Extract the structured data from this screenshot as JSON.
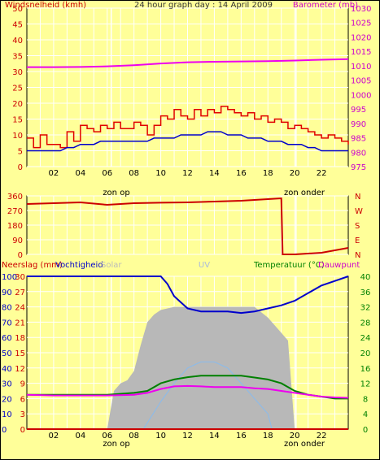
{
  "title": "24 hour graph day : 14 April 2009",
  "top_panel": {
    "left_label": "Windsnelheid (kmh)",
    "right_label": "Barometer (mb)",
    "left_ticks": [
      "50",
      "45",
      "40",
      "35",
      "30",
      "25",
      "20",
      "15",
      "10",
      "5",
      "0"
    ],
    "right_ticks": [
      "1030",
      "1025",
      "1020",
      "1015",
      "1010",
      "1005",
      "1000",
      "995",
      "990",
      "985",
      "980",
      "975"
    ]
  },
  "wind_panel": {
    "left_ticks": [
      "360",
      "270",
      "180",
      "90",
      "0"
    ],
    "right_ticks": [
      "N",
      "W",
      "S",
      "E",
      "N"
    ]
  },
  "bottom_panel": {
    "left_labels": [
      "Neerslag (mm)",
      "Vochtigheid",
      "Solar",
      "UV",
      "Temperatuur (°C)",
      "Dauwpunt"
    ],
    "rain_ticks": [
      "0",
      "3",
      "6",
      "9",
      "12",
      "15",
      "18",
      "21",
      "24",
      "27",
      "30"
    ],
    "humidity_ticks": [
      "100",
      "90",
      "80",
      "70",
      "60",
      "50",
      "40",
      "30",
      "20",
      "10",
      "0"
    ],
    "temp_ticks": [
      "40",
      "36",
      "32",
      "28",
      "24",
      "20",
      "16",
      "12",
      "8",
      "4",
      "0"
    ]
  },
  "hour_ticks": [
    "02",
    "04",
    "06",
    "08",
    "10",
    "12",
    "14",
    "16",
    "18",
    "20",
    "22",
    ""
  ],
  "sunrise_label": "zon op",
  "sunset_label": "zon onder",
  "colors": {
    "background": "#ffff99",
    "wind_gust": "#e00000",
    "wind_avg": "#0000cc",
    "barometer": "#ee00ee",
    "direction": "#cc0000",
    "humidity": "#0000cc",
    "solar": "#b8b8b8",
    "uv": "#88bbee",
    "temperature": "#008000",
    "dewpoint": "#ee00ee",
    "rain": "#cc0000"
  },
  "chart_data": [
    {
      "type": "line",
      "name": "wind and barometer",
      "x_unit": "hour",
      "xlim": [
        0,
        24
      ],
      "ylim_left": [
        0,
        50
      ],
      "ylim_right": [
        975,
        1030
      ],
      "series": [
        {
          "name": "Windsnelheid gust",
          "axis": "left",
          "x": [
            0,
            0.5,
            1,
            1.5,
            2,
            2.5,
            3,
            3.5,
            4,
            4.5,
            5,
            5.5,
            6,
            6.5,
            7,
            7.5,
            8,
            8.5,
            9,
            9.5,
            10,
            10.5,
            11,
            11.5,
            12,
            12.5,
            13,
            13.5,
            14,
            14.5,
            15,
            15.5,
            16,
            16.5,
            17,
            17.5,
            18,
            18.5,
            19,
            19.5,
            20,
            20.5,
            21,
            21.5,
            22,
            22.5,
            23,
            23.5,
            24
          ],
          "y": [
            9,
            6,
            10,
            7,
            7,
            6,
            11,
            8,
            13,
            12,
            11,
            13,
            12,
            14,
            12,
            12,
            14,
            13,
            10,
            13,
            16,
            15,
            18,
            16,
            15,
            18,
            16,
            18,
            17,
            19,
            18,
            17,
            16,
            17,
            15,
            16,
            14,
            15,
            14,
            12,
            13,
            12,
            11,
            10,
            9,
            10,
            9,
            8,
            7
          ]
        },
        {
          "name": "Windsnelheid gemiddeld",
          "axis": "left",
          "x": [
            0,
            0.5,
            1,
            1.5,
            2,
            2.5,
            3,
            3.5,
            4,
            4.5,
            5,
            5.5,
            6,
            6.5,
            7,
            7.5,
            8,
            8.5,
            9,
            9.5,
            10,
            10.5,
            11,
            11.5,
            12,
            12.5,
            13,
            13.5,
            14,
            14.5,
            15,
            15.5,
            16,
            16.5,
            17,
            17.5,
            18,
            18.5,
            19,
            19.5,
            20,
            20.5,
            21,
            21.5,
            22,
            22.5,
            23,
            23.5,
            24
          ],
          "y": [
            5,
            5,
            5,
            5,
            5,
            5,
            6,
            6,
            7,
            7,
            7,
            8,
            8,
            8,
            8,
            8,
            8,
            8,
            8,
            9,
            9,
            9,
            9,
            10,
            10,
            10,
            10,
            11,
            11,
            11,
            10,
            10,
            10,
            9,
            9,
            9,
            8,
            8,
            8,
            7,
            7,
            7,
            6,
            6,
            5,
            5,
            5,
            5,
            5
          ]
        },
        {
          "name": "Barometer",
          "axis": "right",
          "x": [
            0,
            2,
            4,
            6,
            8,
            10,
            12,
            14,
            16,
            18,
            20,
            22,
            24
          ],
          "y": [
            1009.5,
            1009.5,
            1009.6,
            1009.8,
            1010.2,
            1010.8,
            1011.2,
            1011.4,
            1011.5,
            1011.6,
            1011.8,
            1012.1,
            1012.3
          ]
        }
      ]
    },
    {
      "type": "line",
      "name": "wind direction",
      "x_unit": "hour",
      "xlim": [
        0,
        24
      ],
      "ylim": [
        0,
        360
      ],
      "series": [
        {
          "name": "Windrichting",
          "x": [
            0,
            2,
            4,
            6,
            8,
            10,
            12,
            14,
            16,
            18,
            19,
            19.1,
            20,
            22,
            24
          ],
          "y": [
            310,
            315,
            320,
            305,
            315,
            318,
            320,
            325,
            330,
            340,
            345,
            0,
            0,
            10,
            40
          ]
        }
      ]
    },
    {
      "type": "area",
      "name": "rain, humidity, solar, uv, temperature, dewpoint",
      "x_unit": "hour",
      "xlim": [
        0,
        24
      ],
      "ylim_rain": [
        0,
        30
      ],
      "ylim_humidity": [
        0,
        100
      ],
      "ylim_temp": [
        0,
        40
      ],
      "series": [
        {
          "name": "Vochtigheid",
          "axis": "humidity",
          "x": [
            0,
            2,
            4,
            6,
            8,
            9.5,
            10,
            10.5,
            11,
            11.5,
            12,
            13,
            14,
            15,
            16,
            17,
            18,
            19,
            20,
            21,
            22,
            23,
            24
          ],
          "y": [
            100,
            100,
            100,
            100,
            100,
            100,
            100,
            95,
            87,
            83,
            79,
            77,
            77,
            77,
            76,
            77,
            79,
            81,
            84,
            89,
            94,
            97,
            100
          ]
        },
        {
          "name": "Solar (fraction)",
          "axis": "humidity",
          "x": [
            0,
            6,
            6.5,
            7,
            7.5,
            8,
            8.5,
            9,
            9.5,
            10,
            11,
            12,
            13,
            14,
            15,
            16,
            17,
            18,
            18.5,
            19,
            19.5,
            20,
            24
          ],
          "y": [
            0,
            0,
            25,
            30,
            32,
            38,
            55,
            70,
            75,
            78,
            80,
            80,
            80,
            80,
            80,
            80,
            80,
            73,
            68,
            63,
            58,
            0,
            0
          ]
        },
        {
          "name": "UV (fraction)",
          "axis": "humidity",
          "x": [
            0,
            8.7,
            10,
            11,
            12,
            13,
            14,
            15,
            16,
            17,
            18,
            18.3,
            24
          ],
          "y": [
            0,
            0,
            18,
            30,
            40,
            44,
            44,
            40,
            30,
            20,
            10,
            0,
            0
          ]
        },
        {
          "name": "Temperatuur",
          "axis": "temp",
          "x": [
            0,
            2,
            4,
            6,
            8,
            9,
            10,
            11,
            12,
            13,
            14,
            15,
            16,
            17,
            18,
            19,
            20,
            21,
            22,
            23,
            24
          ],
          "y": [
            9,
            9,
            9,
            9,
            9.5,
            10,
            12,
            13,
            13.6,
            14,
            14,
            14,
            14,
            13.5,
            13,
            12,
            10,
            9,
            8.5,
            8,
            8
          ]
        },
        {
          "name": "Dauwpunt",
          "axis": "temp",
          "x": [
            0,
            2,
            4,
            6,
            8,
            9,
            10,
            11,
            12,
            13,
            14,
            15,
            16,
            17,
            18,
            19,
            20,
            21,
            22,
            23,
            24
          ],
          "y": [
            9,
            8.8,
            8.8,
            8.8,
            9,
            9.5,
            10.5,
            11.2,
            11.3,
            11.2,
            11,
            11,
            11,
            10.7,
            10.5,
            10,
            9.5,
            9,
            8.5,
            8.3,
            8.2
          ]
        },
        {
          "name": "Neerslag",
          "axis": "rain",
          "x": [
            0,
            24
          ],
          "y": [
            0,
            0
          ]
        }
      ]
    }
  ]
}
